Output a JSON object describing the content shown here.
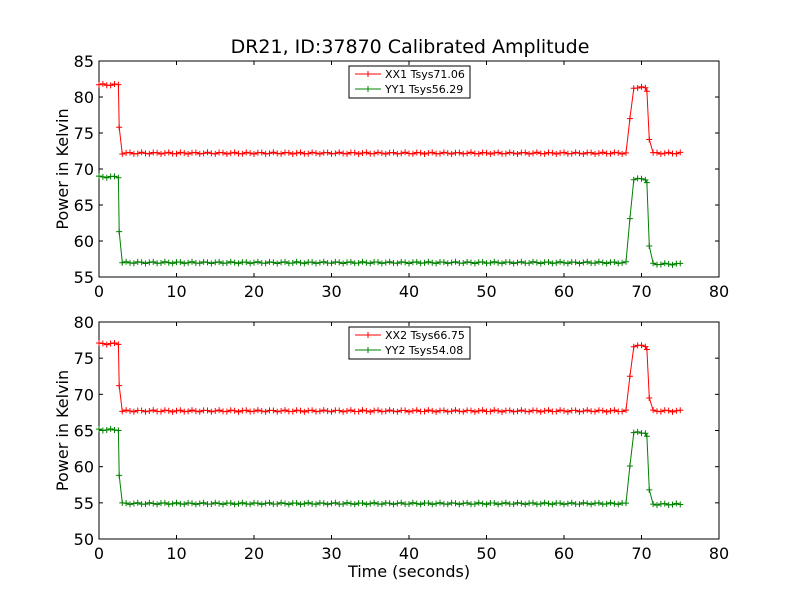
{
  "title": "DR21, ID:37870 Calibrated Amplitude",
  "chart_data": [
    {
      "type": "line",
      "ylabel": "Power in Kelvin",
      "xlabel": "",
      "xlim": [
        0,
        80
      ],
      "ylim": [
        55,
        85
      ],
      "xticks": [
        "0",
        "10",
        "20",
        "30",
        "40",
        "50",
        "60",
        "70",
        "80"
      ],
      "yticks": [
        "55",
        "60",
        "65",
        "70",
        "75",
        "80",
        "85"
      ],
      "legend_position": "top-center",
      "series": [
        {
          "name": "XX1 Tsys71.06",
          "color": "#ff0000",
          "segments": [
            {
              "x0": 0,
              "x1": 2.5,
              "y": 81.7
            },
            {
              "x0": 2.6,
              "x1": 2.6,
              "y": 75.8
            },
            {
              "x0": 3.0,
              "x1": 68.0,
              "y": 72.2
            },
            {
              "x0": 68.5,
              "x1": 68.5,
              "y": 77.0
            },
            {
              "x0": 69.0,
              "x1": 70.5,
              "y": 81.3
            },
            {
              "x0": 70.7,
              "x1": 70.7,
              "y": 80.8
            },
            {
              "x0": 71.0,
              "x1": 71.0,
              "y": 74.1
            },
            {
              "x0": 71.5,
              "x1": 75.0,
              "y": 72.2
            }
          ]
        },
        {
          "name": "YY1 Tsys56.29",
          "color": "#008000",
          "segments": [
            {
              "x0": 0,
              "x1": 2.5,
              "y": 68.9
            },
            {
              "x0": 2.6,
              "x1": 2.6,
              "y": 61.3
            },
            {
              "x0": 3.0,
              "x1": 68.0,
              "y": 57.0
            },
            {
              "x0": 68.5,
              "x1": 68.5,
              "y": 63.1
            },
            {
              "x0": 69.0,
              "x1": 70.5,
              "y": 68.6
            },
            {
              "x0": 70.7,
              "x1": 70.7,
              "y": 68.1
            },
            {
              "x0": 71.0,
              "x1": 71.0,
              "y": 59.3
            },
            {
              "x0": 71.5,
              "x1": 75.0,
              "y": 56.8
            }
          ]
        }
      ]
    },
    {
      "type": "line",
      "ylabel": "Power in Kelvin",
      "xlabel": "Time (seconds)",
      "xlim": [
        0,
        80
      ],
      "ylim": [
        50,
        80
      ],
      "xticks": [
        "0",
        "10",
        "20",
        "30",
        "40",
        "50",
        "60",
        "70",
        "80"
      ],
      "yticks": [
        "50",
        "55",
        "60",
        "65",
        "70",
        "75",
        "80"
      ],
      "legend_position": "top-center",
      "series": [
        {
          "name": "XX2 Tsys66.75",
          "color": "#ff0000",
          "segments": [
            {
              "x0": 0,
              "x1": 2.5,
              "y": 77.0
            },
            {
              "x0": 2.6,
              "x1": 2.6,
              "y": 71.2
            },
            {
              "x0": 3.0,
              "x1": 68.0,
              "y": 67.7
            },
            {
              "x0": 68.5,
              "x1": 68.5,
              "y": 72.5
            },
            {
              "x0": 69.0,
              "x1": 70.5,
              "y": 76.7
            },
            {
              "x0": 70.7,
              "x1": 70.7,
              "y": 76.2
            },
            {
              "x0": 71.0,
              "x1": 71.0,
              "y": 69.5
            },
            {
              "x0": 71.5,
              "x1": 75.0,
              "y": 67.7
            }
          ]
        },
        {
          "name": "YY2 Tsys54.08",
          "color": "#008000",
          "segments": [
            {
              "x0": 0,
              "x1": 2.5,
              "y": 65.1
            },
            {
              "x0": 2.6,
              "x1": 2.6,
              "y": 58.8
            },
            {
              "x0": 3.0,
              "x1": 68.0,
              "y": 54.9
            },
            {
              "x0": 68.5,
              "x1": 68.5,
              "y": 60.1
            },
            {
              "x0": 69.0,
              "x1": 70.5,
              "y": 64.7
            },
            {
              "x0": 70.7,
              "x1": 70.7,
              "y": 64.2
            },
            {
              "x0": 71.0,
              "x1": 71.0,
              "y": 56.8
            },
            {
              "x0": 71.5,
              "x1": 75.0,
              "y": 54.8
            }
          ]
        }
      ]
    }
  ]
}
